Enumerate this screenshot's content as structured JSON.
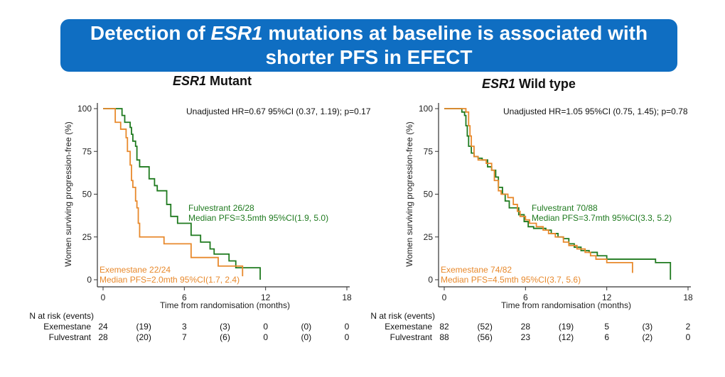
{
  "title": {
    "part1": "Detection of ",
    "italic": "ESR1",
    "part2": " mutations at baseline is associated with",
    "line2": "shorter PFS in EFECT"
  },
  "colors": {
    "banner": "#0f6ec2",
    "exemestane": "#e8892c",
    "fulvestrant": "#1f7a1f"
  },
  "chart_data": [
    {
      "type": "line",
      "title_italic": "ESR1",
      "title_rest": " Mutant",
      "xlabel": "Time from randomisation (months)",
      "ylabel": "Women surviving progression-free (%)",
      "xlim": [
        0,
        18
      ],
      "ylim": [
        0,
        100
      ],
      "xticks": [
        0,
        6,
        12,
        18
      ],
      "yticks": [
        0,
        25,
        50,
        75,
        100
      ],
      "annotation": "Unadjusted HR=0.67 95%CI (0.37, 1.19); p=0.17",
      "series": [
        {
          "name": "Fulvestrant",
          "label1": "Fulvestrant 26/28",
          "label2": "Median PFS=3.5mth 95%CI(1.9, 5.0)",
          "x": [
            0,
            1.3,
            1.4,
            1.6,
            1.9,
            2.0,
            2.1,
            2.2,
            2.4,
            2.5,
            2.7,
            3.4,
            3.6,
            3.7,
            3.8,
            4.0,
            4.7,
            5.0,
            5.2,
            5.5,
            6.5,
            6.7,
            7.2,
            7.9,
            8.2,
            9.3,
            9.8,
            11.6,
            11.6
          ],
          "y": [
            100,
            100,
            96,
            92,
            92,
            89,
            85,
            81,
            78,
            70,
            66,
            59,
            59,
            59,
            55,
            52,
            44,
            37,
            37,
            33,
            26,
            26,
            22,
            18,
            15,
            11,
            7,
            7,
            0
          ]
        },
        {
          "name": "Exemestane",
          "label1": "Exemestane 22/24",
          "label2": "Median PFS=2.0mth 95%CI(1.7, 2.4)",
          "x": [
            0,
            0.7,
            0.9,
            1.3,
            1.6,
            1.7,
            1.8,
            2.0,
            2.1,
            2.2,
            2.4,
            2.5,
            2.6,
            2.7,
            4.3,
            4.5,
            6.5,
            8.5,
            8.5,
            10.3,
            10.3
          ],
          "y": [
            100,
            100,
            92,
            88,
            88,
            83,
            75,
            67,
            58,
            54,
            46,
            42,
            33,
            25,
            25,
            21,
            13,
            13,
            8,
            8,
            2
          ]
        }
      ],
      "risk_table": {
        "header": "N at risk (events)",
        "rows": [
          {
            "name": "Exemestane",
            "values": [
              "24",
              "(19)",
              "3",
              "(3)",
              "0",
              "(0)",
              "0"
            ]
          },
          {
            "name": "Fulvestrant",
            "values": [
              "28",
              "(20)",
              "7",
              "(6)",
              "0",
              "(0)",
              "0"
            ]
          }
        ]
      }
    },
    {
      "type": "line",
      "title_italic": "ESR1",
      "title_rest": " Wild type",
      "xlabel": "Time from randomisation (months)",
      "ylabel": "Women surviving progression-free (%)",
      "xlim": [
        0,
        18
      ],
      "ylim": [
        0,
        100
      ],
      "xticks": [
        0,
        6,
        12,
        18
      ],
      "yticks": [
        0,
        25,
        50,
        75,
        100
      ],
      "annotation": "Unadjusted HR=1.05 95%CI (0.75, 1.45); p=0.78",
      "series": [
        {
          "name": "Fulvestrant",
          "label1": "Fulvestrant 70/88",
          "label2": "Median PFS=3.7mth 95%CI(3.3, 5.2)",
          "x": [
            0,
            1.1,
            1.3,
            1.5,
            1.6,
            1.7,
            1.8,
            2.0,
            2.2,
            2.5,
            2.8,
            3.2,
            3.5,
            3.8,
            4.0,
            4.3,
            4.5,
            4.8,
            5.2,
            5.5,
            5.9,
            6.2,
            6.6,
            7.5,
            7.9,
            8.4,
            8.8,
            9.2,
            9.6,
            10.1,
            10.7,
            11.3,
            12.0,
            13.7,
            15.6,
            16.7,
            16.7
          ],
          "y": [
            100,
            100,
            98,
            96,
            90,
            84,
            78,
            74,
            72,
            71,
            70,
            66,
            64,
            60,
            54,
            50,
            46,
            42,
            42,
            38,
            34,
            31,
            30,
            29,
            27,
            25,
            24,
            21,
            19,
            17,
            16,
            14,
            12,
            12,
            10,
            10,
            0
          ]
        },
        {
          "name": "Exemestane",
          "label1": "Exemestane 74/82",
          "label2": "Median PFS=4.5mth 95%CI(3.7, 5.6)",
          "x": [
            0,
            1.5,
            1.6,
            1.8,
            1.9,
            2.0,
            2.2,
            2.5,
            3.1,
            3.5,
            3.7,
            4.0,
            4.2,
            4.7,
            5.1,
            5.4,
            5.6,
            6.0,
            6.3,
            6.8,
            7.3,
            7.7,
            8.2,
            8.8,
            9.2,
            9.8,
            10.4,
            10.8,
            11.2,
            12.0,
            13.8,
            13.9,
            13.9
          ],
          "y": [
            100,
            100,
            98,
            90,
            84,
            78,
            72,
            70,
            68,
            64,
            58,
            52,
            50,
            48,
            44,
            40,
            37,
            35,
            33,
            31,
            29,
            27,
            25,
            22,
            20,
            18,
            16,
            14,
            12,
            10,
            10,
            8,
            4
          ]
        }
      ],
      "risk_table": {
        "header": "N at risk (events)",
        "rows": [
          {
            "name": "Exemestane",
            "values": [
              "82",
              "(52)",
              "28",
              "(19)",
              "5",
              "(3)",
              "2"
            ]
          },
          {
            "name": "Fulvestrant",
            "values": [
              "88",
              "(56)",
              "23",
              "(12)",
              "6",
              "(2)",
              "0"
            ]
          }
        ]
      }
    }
  ]
}
